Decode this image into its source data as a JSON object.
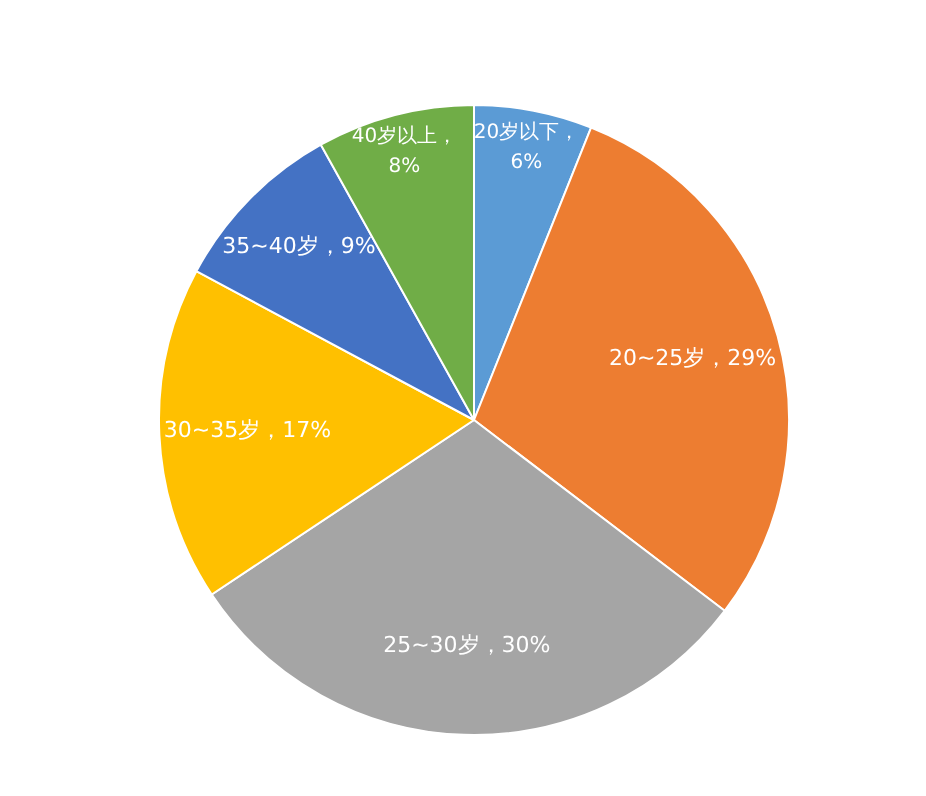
{
  "chart_data": {
    "type": "pie",
    "categories": [
      "20岁以下",
      "20~25岁",
      "25~30岁",
      "30~35岁",
      "35~40岁",
      "40岁以上"
    ],
    "values": [
      6,
      29,
      30,
      17,
      9,
      8
    ],
    "colors": [
      "#5b9bd5",
      "#ed7d31",
      "#a5a5a5",
      "#ffc000",
      "#4472c4",
      "#70ad47"
    ],
    "value_labels": [
      "，6%",
      "，29%",
      "，30%",
      "，17%",
      "，9%",
      "，8%"
    ],
    "legend": false
  }
}
